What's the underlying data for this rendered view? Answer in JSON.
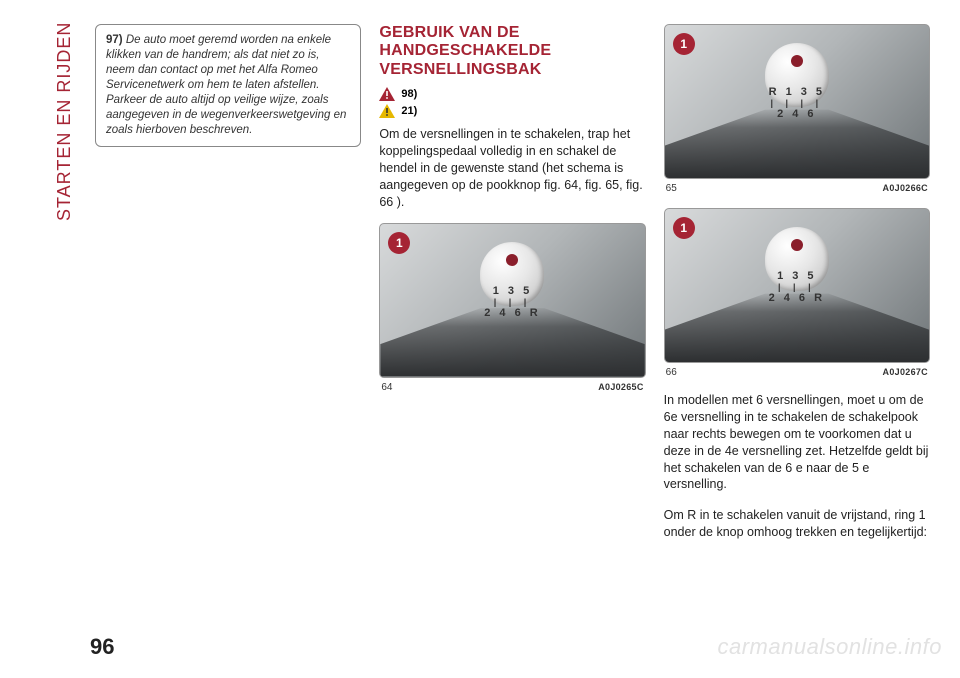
{
  "sidebar_label": "STARTEN EN RIJDEN",
  "page_number": "96",
  "watermark": "carmanualsonline.info",
  "col1": {
    "note_number": "97)",
    "note_text": "De auto moet geremd worden na enkele klikken van de handrem; als dat niet zo is, neem dan contact op met het Alfa Romeo Servicenetwerk om hem te laten afstellen. Parkeer de auto altijd op veilige wijze, zoals aangegeven in de wegenverkeerswetgeving en zoals hierboven beschreven."
  },
  "col2": {
    "heading": "GEBRUIK VAN DE HANDGESCHAKELDE VERSNELLINGSBAK",
    "warning_red_ref": "98)",
    "warning_yellow_ref": "21)",
    "paragraph": "Om de versnellingen in te schakelen, trap het koppelingspedaal volledig in en schakel de hendel in de gewenste stand (het schema is aangegeven op de pookknop fig. 64, fig. 65, fig. 66 ).",
    "fig64": {
      "callout": "1",
      "label": "64",
      "code": "A0J0265C",
      "shift_top": "1 3 5",
      "shift_bottom": "2 4 6 R"
    }
  },
  "col3": {
    "fig65": {
      "callout": "1",
      "label": "65",
      "code": "A0J0266C",
      "shift_top": "R 1 3 5",
      "shift_bottom": "2 4 6"
    },
    "fig66": {
      "callout": "1",
      "label": "66",
      "code": "A0J0267C",
      "shift_top": "1 3 5",
      "shift_bottom": "2 4 6 R"
    },
    "paragraph1": "In modellen met 6 versnellingen, moet u om de 6e versnelling in te schakelen de schakelpook naar rechts bewegen om te voorkomen dat u deze in de 4e versnelling zet. Hetzelfde geldt bij het schakelen van de 6 e naar de 5 e versnelling.",
    "paragraph2": "Om R in te schakelen vanuit de vrijstand, ring 1 onder de knop omhoog trekken en tegelijkertijd:"
  },
  "colors": {
    "accent": "#a52434",
    "text": "#222222",
    "watermark": "#e2e2e2"
  }
}
